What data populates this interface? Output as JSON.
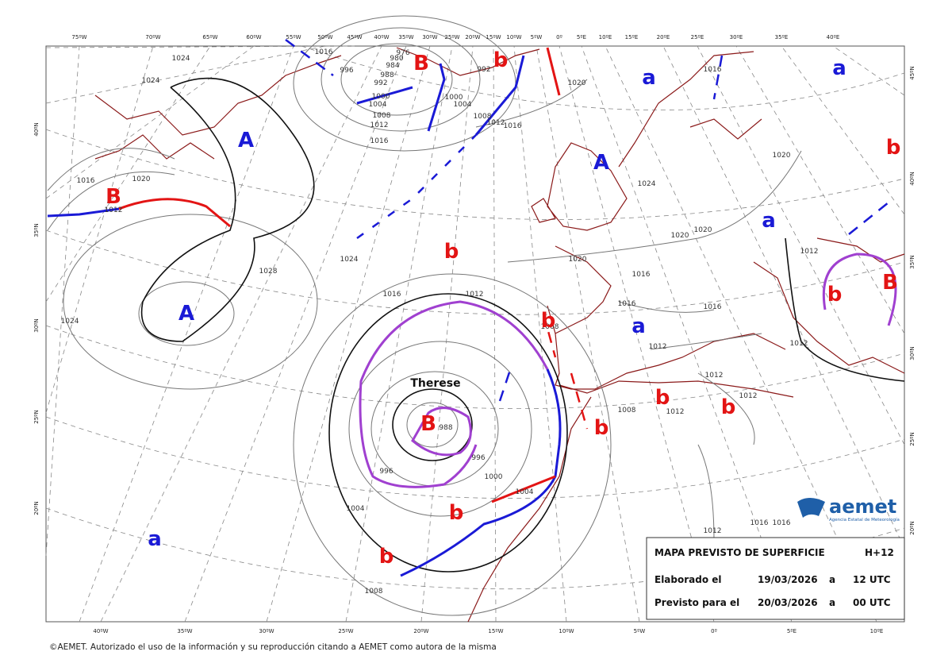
{
  "top_axis_labels": [
    "75ºW",
    "70ºW",
    "65ºW",
    "60ºW",
    "55ºW",
    "50ºW",
    "45ºW",
    "40ºW",
    "35ºW",
    "30ºW",
    "25ºW",
    "20ºW",
    "15ºW",
    "10ºW",
    "5ºW",
    "0º",
    "5ºE",
    "10ºE",
    "15ºE",
    "20ºE",
    "25ºE",
    "30ºE",
    "35ºE",
    "40ºE"
  ],
  "bottom_axis_labels": [
    "40ºW",
    "35ºW",
    "30ºW",
    "25ºW",
    "20ºW",
    "15ºW",
    "10ºW",
    "5ºW",
    "0º",
    "5ºE",
    "10ºE"
  ],
  "left_axis_labels": [
    "40ºN",
    "35ºN",
    "30ºN",
    "25ºN",
    "20ºN"
  ],
  "right_axis_labels": [
    "45ºN",
    "40ºN",
    "35ºN",
    "30ºN",
    "25ºN",
    "20ºN"
  ],
  "highs": {
    "color": "#1a1ad6",
    "labels": [
      "A",
      "A",
      "a",
      "a",
      "A",
      "a",
      "a",
      "a"
    ]
  },
  "lows": {
    "color": "#e31414",
    "labels": [
      "B",
      "B",
      "b",
      "b",
      "b",
      "B",
      "b",
      "b",
      "B",
      "b",
      "b",
      "b",
      "b",
      "b"
    ]
  },
  "isobar_labels": [
    "1024",
    "1024",
    "1016",
    "1020",
    "1012",
    "1028",
    "1024",
    "1024",
    "1016",
    "1012",
    "1016",
    "1012",
    "1008",
    "1004",
    "1000",
    "996",
    "992",
    "988",
    "984",
    "980",
    "976",
    "1016",
    "1000",
    "1004",
    "1008",
    "1012",
    "1016",
    "992",
    "1020",
    "1016",
    "1020",
    "1024",
    "1020",
    "1020",
    "1020",
    "1016",
    "1016",
    "1016",
    "1012",
    "1012",
    "1012",
    "1012",
    "1012",
    "1012",
    "1008",
    "1008",
    "988",
    "996",
    "996",
    "1000",
    "1004",
    "1004",
    "1008",
    "1012",
    "1016",
    "1016"
  ],
  "storm_name": "Therese",
  "info_box": {
    "title": "MAPA PREVISTO DE SUPERFICIE",
    "lead_time": "H+12",
    "rows": [
      [
        "Elaborado el",
        "19/03/2026",
        "a",
        "12 UTC"
      ],
      [
        "Previsto para el",
        "20/03/2026",
        "a",
        "00 UTC"
      ]
    ]
  },
  "logo": {
    "name": "aemet",
    "subtitle": "Agencia Estatal de Meteorología"
  },
  "copyright": "©AEMET. Autorizado el uso de la información y su reproducción citando a AEMET como autora de la misma"
}
